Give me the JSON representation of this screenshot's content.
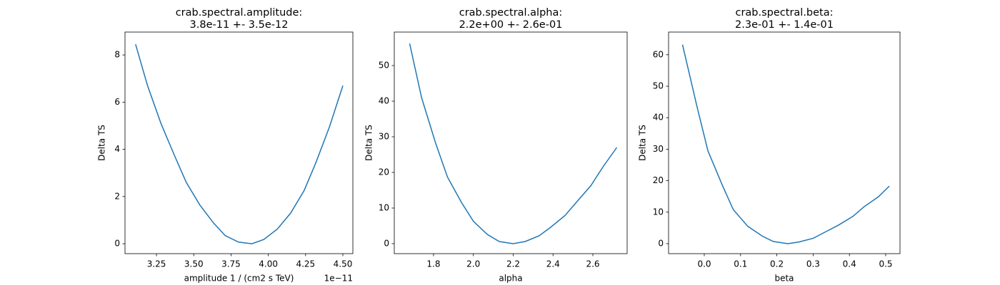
{
  "chart_data": [
    {
      "type": "line",
      "title": "crab.spectral.amplitude:",
      "subtitle": "3.8e-11 +- 3.5e-12",
      "x_label": "amplitude 1 / (cm2 s TeV)",
      "y_label": "Delta TS",
      "x_offset_label": "1e−11",
      "x": [
        3.11,
        3.19,
        3.28,
        3.37,
        3.45,
        3.54,
        3.63,
        3.71,
        3.8,
        3.89,
        3.97,
        4.06,
        4.15,
        4.24,
        4.32,
        4.41,
        4.5
      ],
      "series": [
        {
          "color": "#1f77b4",
          "values": [
            8.45,
            6.7,
            5.1,
            3.75,
            2.6,
            1.65,
            0.9,
            0.35,
            0.07,
            0.0,
            0.18,
            0.62,
            1.3,
            2.25,
            3.45,
            4.95,
            6.7
          ]
        }
      ],
      "xlim": [
        3.039,
        4.567
      ],
      "ylim": [
        -0.42,
        8.97
      ],
      "xticks": [
        3.25,
        {
          "value": 3.5,
          "label": "3.50"
        },
        3.75,
        {
          "value": 4,
          "label": "4.00"
        },
        4.25,
        {
          "value": 4.5,
          "label": "4.50"
        }
      ],
      "yticks": [
        0,
        2,
        4,
        6,
        8
      ],
      "grid": false
    },
    {
      "type": "line",
      "title": "crab.spectral.alpha:",
      "subtitle": "2.2e+00 +- 2.6e-01",
      "x_label": "alpha",
      "y_label": "Delta TS",
      "x": [
        1.68,
        1.74,
        1.81,
        1.87,
        1.94,
        2.0,
        2.07,
        2.13,
        2.2,
        2.26,
        2.33,
        2.39,
        2.46,
        2.52,
        2.59,
        2.65,
        2.72
      ],
      "series": [
        {
          "color": "#1f77b4",
          "values": [
            56.2,
            41,
            28.3,
            18.7,
            11.6,
            6.3,
            2.6,
            0.6,
            0.0,
            0.6,
            2.2,
            4.7,
            7.9,
            11.8,
            16.3,
            21.5,
            27.0
          ]
        }
      ],
      "xlim": [
        1.603,
        2.772
      ],
      "ylim": [
        -2.8,
        59.4
      ],
      "xticks": [
        1.8,
        {
          "value": 2,
          "label": "2.0"
        },
        2.2,
        2.4,
        2.6
      ],
      "yticks": [
        0,
        10,
        20,
        30,
        40,
        50
      ],
      "grid": false
    },
    {
      "type": "line",
      "title": "crab.spectral.beta:",
      "subtitle": "2.3e-01 +- 1.4e-01",
      "x_label": "beta",
      "y_label": "Delta TS",
      "x": [
        -0.06,
        -0.02,
        0.01,
        0.05,
        0.08,
        0.12,
        0.16,
        0.19,
        0.23,
        0.26,
        0.3,
        0.33,
        0.37,
        0.41,
        0.44,
        0.48,
        0.51
      ],
      "series": [
        {
          "color": "#1f77b4",
          "values": [
            63.2,
            43.5,
            29.5,
            18.5,
            10.8,
            5.5,
            2.4,
            0.7,
            0.0,
            0.5,
            1.7,
            3.5,
            5.9,
            8.7,
            11.7,
            14.9,
            18.3
          ]
        }
      ],
      "xlim": [
        -0.0984,
        0.5394
      ],
      "ylim": [
        -3.17,
        67.2
      ],
      "xticks": [
        {
          "value": 0,
          "label": "0.0"
        },
        0.1,
        0.2,
        0.3,
        0.4,
        0.5
      ],
      "yticks": [
        0,
        10,
        20,
        30,
        40,
        50,
        60
      ],
      "grid": false
    }
  ]
}
